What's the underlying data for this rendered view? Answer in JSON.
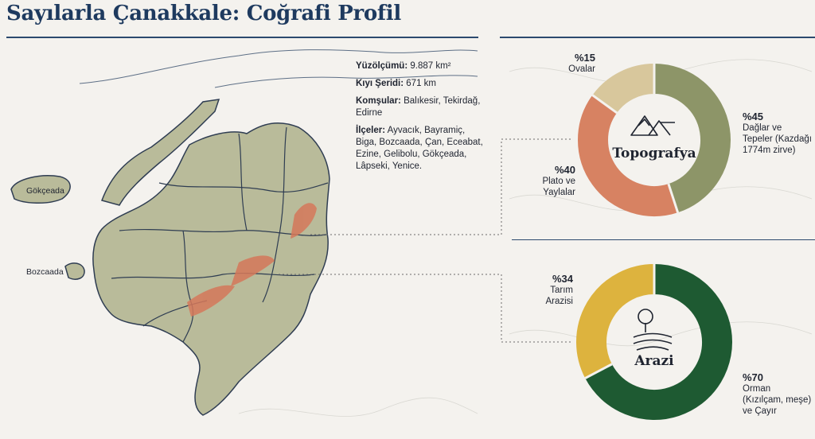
{
  "title": "Sayılarla Çanakkale: Coğrafi Profil",
  "info": {
    "area_label": "Yüzölçümü:",
    "area_value": "9.887 km²",
    "coast_label": "Kıyı Şeridi:",
    "coast_value": "671 km",
    "neighbors_label": "Komşular:",
    "neighbors_value": "Balıkesir, Tekirdağ, Edirne",
    "districts_label": "İlçeler:",
    "districts_value": "Ayvacık, Bayramiç, Biga, Bozcaada, Çan, Eceabat, Ezine, Gelibolu, Gökçeada, Lâpseki, Yenice."
  },
  "map": {
    "island1": "Gökçeada",
    "island2": "Bozcaada"
  },
  "topography": {
    "center_label": "Topografya",
    "segments": [
      {
        "pct": "%45",
        "text": [
          "Dağlar ve",
          "Tepeler (Kazdağı",
          "1774m zirve)"
        ],
        "value": 45,
        "color": "#8d9568"
      },
      {
        "pct": "%40",
        "text": [
          "Plato ve",
          "Yaylalar"
        ],
        "value": 40,
        "color": "#d78262"
      },
      {
        "pct": "%15",
        "text": [
          "Ovalar"
        ],
        "value": 15,
        "color": "#d8c79c"
      }
    ]
  },
  "land": {
    "center_label": "Arazi",
    "segments": [
      {
        "pct": "%70",
        "text": [
          "Orman",
          "(Kızılçam, meşe)",
          "ve Çayır"
        ],
        "value": 70,
        "color": "#1e5a32"
      },
      {
        "pct": "%34",
        "text": [
          "Tarım",
          "Arazisi"
        ],
        "value": 34,
        "color": "#ddb33e"
      }
    ]
  },
  "colors": {
    "accent": "#1e3a5f",
    "land": "#b9bb9a",
    "border": "#2f3d52",
    "mountain": "#d5785a"
  }
}
